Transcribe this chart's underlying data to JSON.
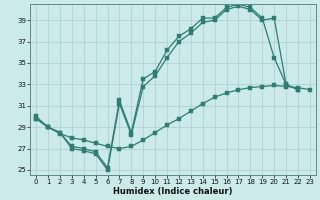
{
  "xlabel": "Humidex (Indice chaleur)",
  "bg_color": "#cceaea",
  "line_color": "#2d7d72",
  "grid_color": "#aacccc",
  "xlim": [
    -0.5,
    23.5
  ],
  "ylim": [
    24.5,
    40.5
  ],
  "yticks": [
    25,
    27,
    29,
    31,
    33,
    35,
    37,
    39
  ],
  "xticks": [
    0,
    1,
    2,
    3,
    4,
    5,
    6,
    7,
    8,
    9,
    10,
    11,
    12,
    13,
    14,
    15,
    16,
    17,
    18,
    19,
    20,
    21,
    22,
    23
  ],
  "line1_x": [
    0,
    1,
    2,
    3,
    4,
    5,
    6,
    7,
    8,
    9,
    10,
    11,
    12,
    13,
    14,
    15,
    16,
    17,
    18,
    19,
    20,
    21,
    22
  ],
  "line1_y": [
    29.8,
    29.0,
    28.5,
    27.2,
    27.0,
    26.7,
    25.2,
    31.5,
    28.5,
    33.5,
    34.2,
    36.2,
    37.5,
    38.2,
    39.2,
    39.2,
    40.2,
    40.5,
    40.2,
    39.2,
    35.5,
    33.0,
    32.5
  ],
  "line2_x": [
    0,
    1,
    2,
    3,
    4,
    5,
    6,
    7,
    8,
    9,
    10,
    11,
    12,
    13,
    14,
    15,
    16,
    17,
    18,
    19,
    20,
    21,
    22
  ],
  "line2_y": [
    30.0,
    29.0,
    28.5,
    27.0,
    26.8,
    26.5,
    25.0,
    31.2,
    28.3,
    32.8,
    33.8,
    35.5,
    37.0,
    37.8,
    38.8,
    39.0,
    40.0,
    40.3,
    40.0,
    39.0,
    39.2,
    33.0,
    32.5
  ],
  "line3_x": [
    0,
    1,
    2,
    3,
    4,
    5,
    6,
    7,
    8,
    9,
    10,
    11,
    12,
    13,
    14,
    15,
    16,
    17,
    18,
    19,
    20,
    21,
    22,
    23
  ],
  "line3_y": [
    29.8,
    29.0,
    28.4,
    28.0,
    27.8,
    27.5,
    27.2,
    27.0,
    27.2,
    27.8,
    28.5,
    29.2,
    29.8,
    30.5,
    31.2,
    31.8,
    32.2,
    32.5,
    32.7,
    32.8,
    32.9,
    32.8,
    32.7,
    32.5
  ]
}
